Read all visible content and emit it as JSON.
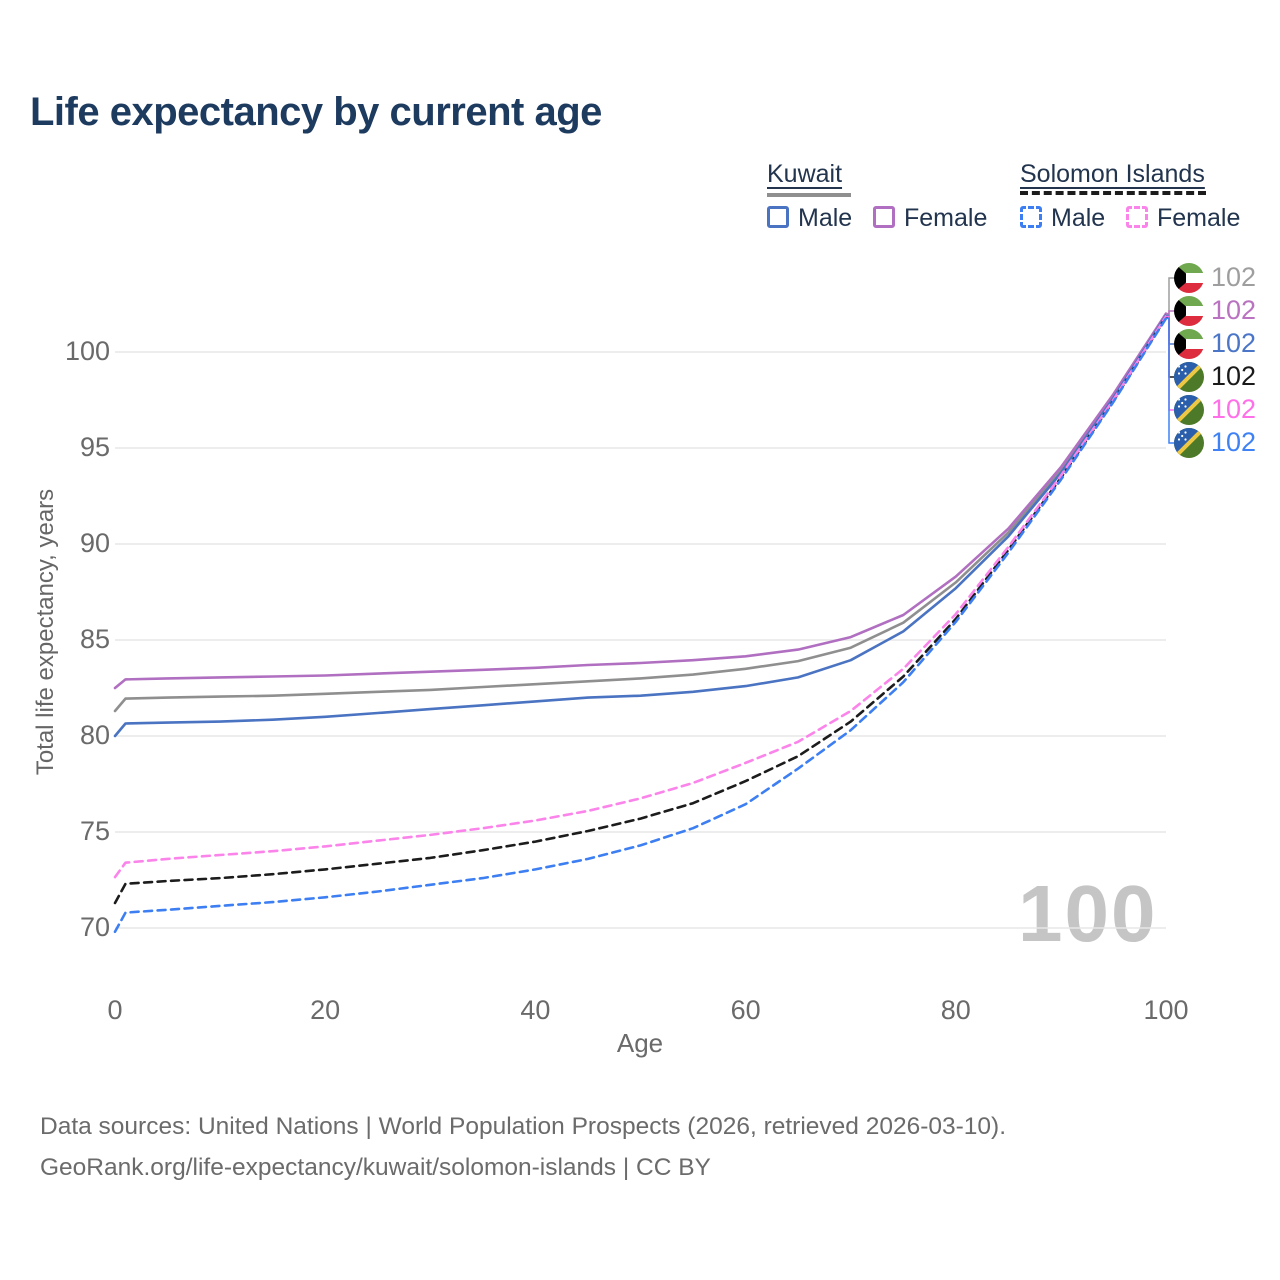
{
  "title": "Life expectancy by current age",
  "watermark": "100",
  "legend": {
    "kuwait": {
      "name": "Kuwait",
      "male_label": "Male",
      "female_label": "Female"
    },
    "solomon": {
      "name": "Solomon Islands",
      "male_label": "Male",
      "female_label": "Female"
    }
  },
  "colors": {
    "kuwait_male": "#4a73c2",
    "kuwait_female": "#b06fc0",
    "kuwait_total": "#8f8f8f",
    "solomon_male": "#3d7ff2",
    "solomon_female": "#fb84ea",
    "solomon_total": "#1c1c1c",
    "title_navy": "#1d3a5f",
    "axis_gray": "#6a6a6a",
    "grid": "#e7e7e7",
    "watermark_gray": "#c5c5c5"
  },
  "chart_data": {
    "type": "line",
    "title": "Life expectancy by current age",
    "xlabel": "Age",
    "ylabel": "Total life expectancy, years",
    "xlim": [
      0,
      100
    ],
    "ylim": [
      68,
      104
    ],
    "x_ticks": [
      0,
      20,
      40,
      60,
      80,
      100
    ],
    "y_ticks": [
      70,
      75,
      80,
      85,
      90,
      95,
      100
    ],
    "grid": "horizontal",
    "legend_position": "top-right",
    "ages": [
      0,
      1,
      5,
      10,
      15,
      20,
      25,
      30,
      35,
      40,
      45,
      50,
      55,
      60,
      65,
      70,
      75,
      80,
      85,
      90,
      95,
      100
    ],
    "series": [
      {
        "name": "Kuwait Both sexes",
        "country": "Kuwait",
        "sex": "Both",
        "color": "#8f8f8f",
        "dashed": false,
        "values": [
          81.3,
          81.95,
          82.0,
          82.05,
          82.1,
          82.2,
          82.3,
          82.4,
          82.55,
          82.7,
          82.85,
          83.0,
          83.2,
          83.5,
          83.9,
          84.6,
          85.9,
          88.0,
          90.6,
          93.85,
          97.7,
          101.95
        ]
      },
      {
        "name": "Kuwait Female",
        "country": "Kuwait",
        "sex": "Female",
        "color": "#b06fc0",
        "dashed": false,
        "values": [
          82.5,
          82.95,
          83.0,
          83.05,
          83.1,
          83.15,
          83.25,
          83.35,
          83.45,
          83.55,
          83.7,
          83.8,
          83.95,
          84.15,
          84.5,
          85.15,
          86.3,
          88.3,
          90.8,
          94.0,
          97.8,
          102.0
        ]
      },
      {
        "name": "Kuwait Male",
        "country": "Kuwait",
        "sex": "Male",
        "color": "#4a73c2",
        "dashed": false,
        "values": [
          80.0,
          80.65,
          80.7,
          80.75,
          80.85,
          81.0,
          81.2,
          81.4,
          81.6,
          81.8,
          82.0,
          82.1,
          82.3,
          82.6,
          83.05,
          83.95,
          85.45,
          87.7,
          90.4,
          93.7,
          97.6,
          101.9
        ]
      },
      {
        "name": "Solomon Islands Both sexes",
        "country": "Solomon Islands",
        "sex": "Both",
        "color": "#1c1c1c",
        "dashed": true,
        "values": [
          71.3,
          72.3,
          72.45,
          72.6,
          72.8,
          73.05,
          73.35,
          73.65,
          74.05,
          74.5,
          75.05,
          75.7,
          76.5,
          77.65,
          78.95,
          80.75,
          83.1,
          86.1,
          89.7,
          93.45,
          97.45,
          101.8
        ]
      },
      {
        "name": "Solomon Islands Female",
        "country": "Solomon Islands",
        "sex": "Female",
        "color": "#fb84ea",
        "dashed": true,
        "values": [
          72.65,
          73.4,
          73.6,
          73.8,
          74.0,
          74.25,
          74.55,
          74.85,
          75.2,
          75.6,
          76.1,
          76.75,
          77.55,
          78.6,
          79.7,
          81.3,
          83.5,
          86.35,
          89.85,
          93.55,
          97.5,
          101.85
        ]
      },
      {
        "name": "Solomon Islands Male",
        "country": "Solomon Islands",
        "sex": "Male",
        "color": "#3d7ff2",
        "dashed": true,
        "values": [
          69.8,
          70.8,
          70.95,
          71.15,
          71.35,
          71.6,
          71.9,
          72.25,
          72.6,
          73.05,
          73.6,
          74.3,
          75.2,
          76.45,
          78.3,
          80.3,
          82.8,
          85.95,
          89.55,
          93.35,
          97.4,
          101.75
        ]
      }
    ]
  },
  "end_labels": [
    {
      "country": "Kuwait",
      "flag": "kw",
      "value": "102",
      "color": "#9e9e9e"
    },
    {
      "country": "Kuwait",
      "flag": "kw",
      "value": "102",
      "color": "#b973c0"
    },
    {
      "country": "Kuwait",
      "flag": "kw",
      "value": "102",
      "color": "#4b76c8"
    },
    {
      "country": "Solomon Islands",
      "flag": "sb",
      "value": "102",
      "color": "#1a1a1a"
    },
    {
      "country": "Solomon Islands",
      "flag": "sb",
      "value": "102",
      "color": "#ff70e8"
    },
    {
      "country": "Solomon Islands",
      "flag": "sb",
      "value": "102",
      "color": "#3f82f5"
    }
  ],
  "footer": {
    "line1": "Data sources: United Nations | World Population Prospects (2026, retrieved 2026-03-10).",
    "line2": "GeoRank.org/life-expectancy/kuwait/solomon-islands | CC BY"
  }
}
